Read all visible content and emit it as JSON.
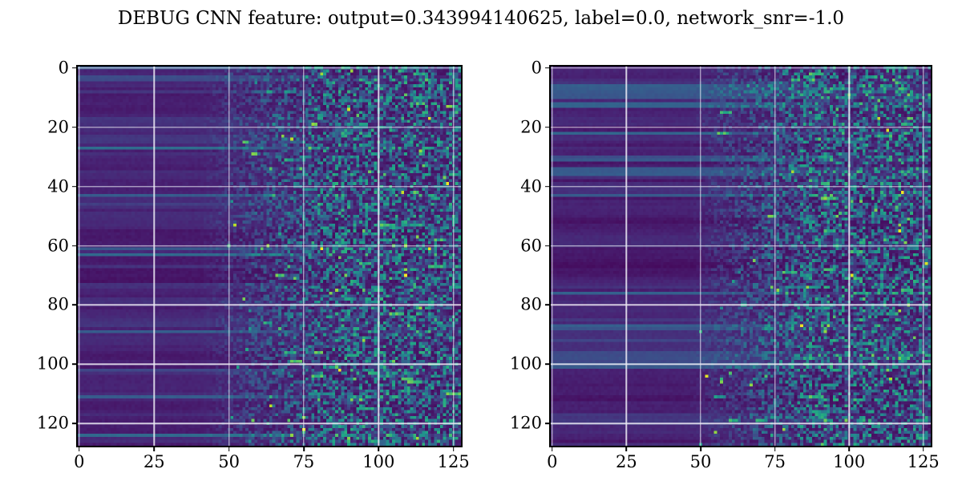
{
  "title": "DEBUG CNN feature: output=0.343994140625, label=0.0, network_snr=-1.0",
  "colors": {
    "background": "#ffffff",
    "text": "#000000",
    "spine": "#000000",
    "grid": "#eeecf6",
    "heatmap_low": "#440154",
    "heatmap_high": "#fde725"
  },
  "chart_data": [
    {
      "type": "heatmap",
      "panel": "left",
      "shape": [
        128,
        128
      ],
      "x_range": [
        -0.5,
        127.5
      ],
      "y_range": [
        -0.5,
        127.5
      ],
      "x_ticks": [
        0,
        25,
        50,
        75,
        100,
        125
      ],
      "y_ticks": [
        0,
        20,
        40,
        60,
        80,
        100,
        120
      ],
      "grid": true,
      "legend": false,
      "colormap": "viridis",
      "colormap_stops": [
        [
          68,
          1,
          84
        ],
        [
          72,
          36,
          117
        ],
        [
          65,
          68,
          135
        ],
        [
          53,
          95,
          141
        ],
        [
          42,
          120,
          142
        ],
        [
          33,
          144,
          141
        ],
        [
          34,
          168,
          132
        ],
        [
          68,
          190,
          112
        ],
        [
          122,
          209,
          81
        ],
        [
          189,
          223,
          38
        ],
        [
          253,
          231,
          37
        ]
      ],
      "seed": 1337,
      "pattern": {
        "description": "horizontal row-banded dark purple base on left columns, transitioning to speckled teal/green noise with sparse yellow spikes toward right columns",
        "row_band_base": 0.055,
        "row_band_spread": 0.09,
        "row_band_boost_prob": 0.22,
        "row_band_boost_max": 0.26,
        "row_fade": 0.7,
        "noise_onset_col": 40,
        "noise_full_col": 86,
        "noise_max": 0.6,
        "noise_exp": 2.2,
        "spike_prob": 0.02,
        "bright_spike_prob": 0.002,
        "run_prob": 0.3
      }
    },
    {
      "type": "heatmap",
      "panel": "right",
      "shape": [
        128,
        128
      ],
      "x_range": [
        -0.5,
        127.5
      ],
      "y_range": [
        -0.5,
        127.5
      ],
      "x_ticks": [
        0,
        25,
        50,
        75,
        100,
        125
      ],
      "y_ticks": [
        0,
        20,
        40,
        60,
        80,
        100,
        120
      ],
      "grid": true,
      "legend": false,
      "colormap": "viridis",
      "colormap_stops": [
        [
          68,
          1,
          84
        ],
        [
          72,
          36,
          117
        ],
        [
          65,
          68,
          135
        ],
        [
          53,
          95,
          141
        ],
        [
          42,
          120,
          142
        ],
        [
          33,
          144,
          141
        ],
        [
          34,
          168,
          132
        ],
        [
          68,
          190,
          112
        ],
        [
          122,
          209,
          81
        ],
        [
          189,
          223,
          38
        ],
        [
          253,
          231,
          37
        ]
      ],
      "seed": 4242,
      "pattern": {
        "description": "same banded-to-noise structure as left panel, noise onset slightly later, one bright yellow spike upper right",
        "row_band_base": 0.055,
        "row_band_spread": 0.09,
        "row_band_boost_prob": 0.22,
        "row_band_boost_max": 0.26,
        "row_fade": 0.7,
        "noise_onset_col": 46,
        "noise_full_col": 88,
        "noise_max": 0.6,
        "noise_exp": 2.2,
        "spike_prob": 0.02,
        "bright_spike_prob": 0.002,
        "run_prob": 0.3
      }
    }
  ]
}
